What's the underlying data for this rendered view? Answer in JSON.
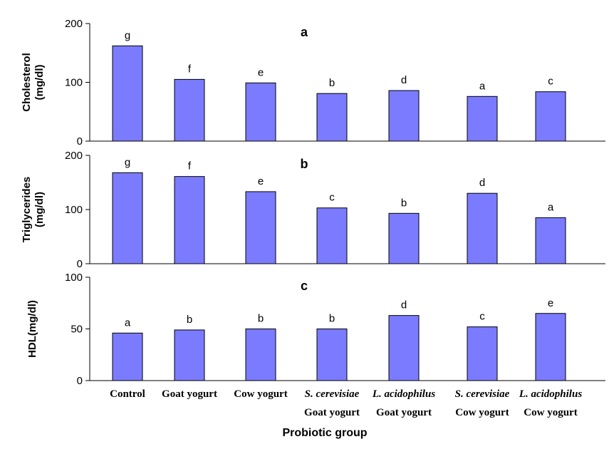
{
  "chart_data": [
    {
      "type": "bar",
      "panel_letter": "a",
      "ylabel_lines": [
        "Cholesterol",
        "(mg/dl)"
      ],
      "ylim": [
        0,
        200
      ],
      "yticks": [
        0,
        100,
        200
      ],
      "categories": [
        "Control",
        "Goat yogurt",
        "Cow yogurt",
        "S. cerevisiae Goat yogurt",
        "L. acidophilus Goat yogurt",
        "S. cerevisiae Cow yogurt",
        "L. acidophilus Cow yogurt"
      ],
      "values": [
        162,
        105,
        99,
        81,
        86,
        76,
        84
      ],
      "annotations": [
        "g",
        "f",
        "e",
        "b",
        "d",
        "a",
        "c"
      ],
      "bar_color": "#7b7bff"
    },
    {
      "type": "bar",
      "panel_letter": "b",
      "ylabel_lines": [
        "Triglycerides",
        "(mg/dl)"
      ],
      "ylim": [
        0,
        200
      ],
      "yticks": [
        0,
        100,
        200
      ],
      "categories": [
        "Control",
        "Goat yogurt",
        "Cow yogurt",
        "S. cerevisiae Goat yogurt",
        "L. acidophilus Goat yogurt",
        "S. cerevisiae Cow yogurt",
        "L. acidophilus Cow yogurt"
      ],
      "values": [
        168,
        161,
        133,
        103,
        93,
        130,
        85
      ],
      "annotations": [
        "g",
        "f",
        "e",
        "c",
        "b",
        "d",
        "a"
      ],
      "bar_color": "#7b7bff"
    },
    {
      "type": "bar",
      "panel_letter": "c",
      "ylabel_lines": [
        "HDL(mg/dl)"
      ],
      "ylim": [
        0,
        100
      ],
      "yticks": [
        0,
        50,
        100
      ],
      "categories": [
        "Control",
        "Goat yogurt",
        "Cow yogurt",
        "S. cerevisiae Goat yogurt",
        "L. acidophilus Goat yogurt",
        "S. cerevisiae Cow yogurt",
        "L. acidophilus Cow yogurt"
      ],
      "values": [
        46,
        49,
        50,
        50,
        63,
        52,
        65
      ],
      "annotations": [
        "a",
        "b",
        "b",
        "b",
        "d",
        "c",
        "e"
      ],
      "bar_color": "#7b7bff"
    }
  ],
  "x_axis": {
    "xlabel": "Probiotic group",
    "category_labels": [
      {
        "line1": "Control",
        "line1_italic": false,
        "line2": ""
      },
      {
        "line1": "Goat yogurt",
        "line1_italic": false,
        "line2": ""
      },
      {
        "line1": "Cow yogurt",
        "line1_italic": false,
        "line2": ""
      },
      {
        "line1": "S. cerevisiae",
        "line1_italic": true,
        "line2": "Goat yogurt"
      },
      {
        "line1": "L. acidophilus",
        "line1_italic": true,
        "line2": "Goat yogurt"
      },
      {
        "line1": "S. cerevisiae",
        "line1_italic": true,
        "line2": "Cow yogurt"
      },
      {
        "line1": "L. acidophilus",
        "line1_italic": true,
        "line2": "Cow yogurt"
      }
    ]
  }
}
